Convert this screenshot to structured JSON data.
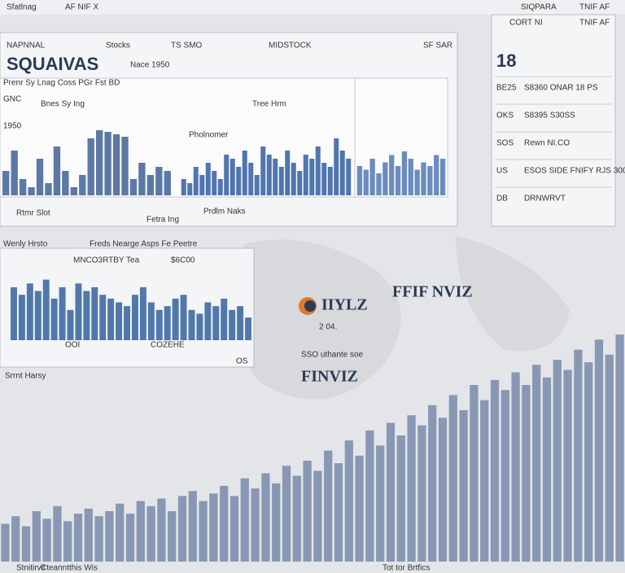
{
  "header": {
    "left": "Sfatlnag",
    "left_tag": "AF NIF X",
    "right": "SIQPARA",
    "right_tag": "TNIF AF"
  },
  "main_panel": {
    "title": "SQUAIVAS",
    "subtitle": "Nace 1950",
    "columns": [
      "NAPNNAL",
      "Stocks",
      "TS SMO",
      "MIDSTOCK",
      "SF SAR"
    ],
    "labels": [
      "Prenr Sy Lnag Coss PGr Fst BD",
      "GNC",
      "Bnes Sy Ing",
      "Tree Hrm",
      "Pholnomer",
      "1950"
    ],
    "footer": [
      "Rtmr Slot",
      "Fetra Ing",
      "Prdlm Naks"
    ]
  },
  "sidebar": {
    "title": "CORT NI",
    "tag": "TNIF AF",
    "big": "18",
    "rows": [
      [
        "BE25",
        "S8360 ONAR 18 PS"
      ],
      [
        "OKS",
        "S8395 S30SS"
      ],
      [
        "SOS",
        "Rewn NI.CO"
      ],
      [
        "US",
        "ESOS SIDE FNIFY RJS 300"
      ],
      [
        "DB",
        "DRNWRVT"
      ]
    ]
  },
  "second_panel": {
    "title": "Wenly Hrsto",
    "subtitle": "Freds Nearge Asps Fe Peetre",
    "name": "MNCO3RTBY Tea",
    "price": "$6C00",
    "footer": [
      "OOI",
      "COZEHE",
      "Srrnt Harsy",
      "OS"
    ]
  },
  "center": {
    "logo": "IIYLZ",
    "year": "2 04.",
    "brand": "FINVIZ",
    "brand2": "FFIF NVIZ",
    "note": "SSO uthante soe"
  },
  "footer": [
    "Stnitirvit",
    "Cteanntthis Wis",
    "Tot tor Brtfics"
  ],
  "chart_data": [
    {
      "type": "bar",
      "color": "#4a6a9c",
      "ylim": [
        0,
        100
      ],
      "values": [
        30,
        55,
        20,
        10,
        45,
        15,
        60,
        30,
        10,
        25,
        70,
        80,
        78,
        75,
        72,
        20,
        40,
        25,
        35,
        30
      ]
    },
    {
      "type": "bar",
      "color": "#3d66a6",
      "ylim": [
        0,
        100
      ],
      "values": [
        20,
        15,
        35,
        25,
        40,
        30,
        20,
        50,
        45,
        35,
        55,
        40,
        25,
        60,
        50,
        45,
        35,
        55,
        40,
        30,
        50,
        45,
        60,
        40,
        35,
        70,
        55,
        45
      ]
    },
    {
      "type": "bar",
      "color": "#5a7fb8",
      "ylim": [
        0,
        100
      ],
      "values": [
        40,
        35,
        50,
        30,
        45,
        55,
        40,
        60,
        50,
        35,
        45,
        40,
        55,
        50
      ]
    },
    {
      "type": "bar",
      "color": "#3f6aa3",
      "ylim": [
        0,
        100
      ],
      "values": [
        70,
        60,
        75,
        65,
        80,
        55,
        70,
        40,
        75,
        65,
        70,
        60,
        55,
        50,
        45,
        60,
        70,
        50,
        40,
        45,
        55,
        60,
        40,
        35,
        50,
        45,
        55,
        40,
        45,
        30
      ]
    },
    {
      "type": "bar",
      "color": "#7d8fae",
      "ylim": [
        0,
        100
      ],
      "values": [
        15,
        18,
        14,
        20,
        17,
        22,
        16,
        19,
        21,
        18,
        20,
        23,
        19,
        24,
        22,
        25,
        20,
        26,
        28,
        24,
        27,
        30,
        26,
        33,
        29,
        35,
        31,
        38,
        34,
        40,
        36,
        44,
        39,
        48,
        42,
        52,
        46,
        55,
        50,
        58,
        54,
        62,
        57,
        66,
        60,
        70,
        64,
        72,
        68,
        75,
        70,
        78,
        73,
        80,
        76,
        84,
        79,
        88,
        82,
        90
      ]
    }
  ]
}
